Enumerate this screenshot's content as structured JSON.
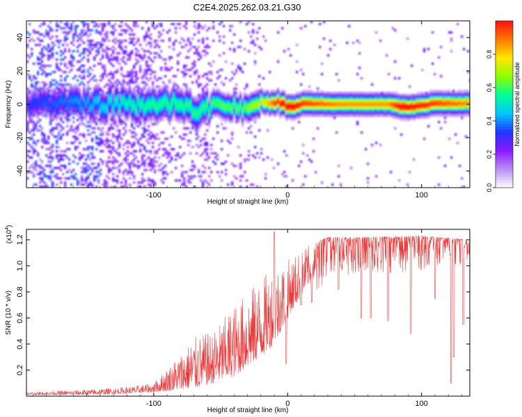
{
  "figure": {
    "title": "C2E4.2025.262.03.21.G30"
  },
  "chart_data": [
    {
      "type": "heatmap",
      "name": "spectrogram",
      "xlabel": "Height of straight line (km)",
      "ylabel": "Frequency (Hz)",
      "xlim": [
        -195,
        136
      ],
      "ylim": [
        -50,
        50
      ],
      "x_ticks": [
        -100,
        0,
        100
      ],
      "x_tick_labels": [
        "-100",
        "0",
        "100"
      ],
      "y_ticks": [
        -40,
        -20,
        0,
        20,
        40
      ],
      "y_tick_labels": [
        "-40",
        "-20",
        "0",
        "20",
        "40"
      ],
      "colorbar": {
        "label": "Normalized spectral amplitude",
        "range": [
          0,
          1
        ],
        "ticks": [
          0.0,
          0.2,
          0.4,
          0.6,
          0.8
        ],
        "tick_labels": [
          "0.0",
          "0.2",
          "0.4",
          "0.6",
          "0.8"
        ],
        "colors": [
          "#ffffff",
          "#b890f0",
          "#8a1aff",
          "#2233ff",
          "#00c8ff",
          "#00ff99",
          "#8bff00",
          "#ffe800",
          "#ff7a00",
          "#ff1010"
        ]
      },
      "ridge": [
        {
          "x": -195,
          "f": 0,
          "amp": 0.25
        },
        {
          "x": -150,
          "f": 0,
          "amp": 0.35
        },
        {
          "x": -125,
          "f": 0,
          "amp": 0.45
        },
        {
          "x": -100,
          "f": -1,
          "amp": 0.5
        },
        {
          "x": -80,
          "f": 1,
          "amp": 0.5
        },
        {
          "x": -65,
          "f": -4,
          "amp": 0.5
        },
        {
          "x": -50,
          "f": 0,
          "amp": 0.55
        },
        {
          "x": -35,
          "f": -3,
          "amp": 0.55
        },
        {
          "x": -20,
          "f": 1,
          "amp": 0.6
        },
        {
          "x": -5,
          "f": 1,
          "amp": 0.95
        },
        {
          "x": 0,
          "f": -1.5,
          "amp": 0.95
        },
        {
          "x": 5,
          "f": -1.5,
          "amp": 0.95
        },
        {
          "x": 12,
          "f": 0.5,
          "amp": 0.85
        },
        {
          "x": 40,
          "f": 0,
          "amp": 0.75
        },
        {
          "x": 75,
          "f": 0,
          "amp": 0.75
        },
        {
          "x": 85,
          "f": -1.5,
          "amp": 0.95
        },
        {
          "x": 95,
          "f": -1.5,
          "amp": 0.9
        },
        {
          "x": 110,
          "f": 0.5,
          "amp": 0.85
        },
        {
          "x": 136,
          "f": 0.5,
          "amp": 0.75
        }
      ]
    },
    {
      "type": "line",
      "name": "snr",
      "xlabel": "Height of straight line (km)",
      "ylabel": "SNR (10 * v/v)",
      "y_multiplier_label": "(x10",
      "y_multiplier_exp": "4",
      "y_multiplier_close": ")",
      "xlim": [
        -195,
        136
      ],
      "ylim": [
        0,
        1.28
      ],
      "x_ticks": [
        -100,
        0,
        100
      ],
      "x_tick_labels": [
        "-100",
        "0",
        "100"
      ],
      "y_ticks": [
        0.2,
        0.4,
        0.6,
        0.8,
        1.0,
        1.2
      ],
      "y_tick_labels": [
        "0.2",
        "0.4",
        "0.6",
        "0.8",
        "1.0",
        "1.2"
      ],
      "color": "#ee3333",
      "envelope": [
        {
          "x": -195,
          "low": 0.01,
          "high": 0.03
        },
        {
          "x": -150,
          "low": 0.01,
          "high": 0.05
        },
        {
          "x": -120,
          "low": 0.02,
          "high": 0.07
        },
        {
          "x": -100,
          "low": 0.03,
          "high": 0.1
        },
        {
          "x": -80,
          "low": 0.05,
          "high": 0.33
        },
        {
          "x": -70,
          "low": 0.06,
          "high": 0.45
        },
        {
          "x": -55,
          "low": 0.1,
          "high": 0.5
        },
        {
          "x": -40,
          "low": 0.15,
          "high": 0.7
        },
        {
          "x": -20,
          "low": 0.3,
          "high": 0.9
        },
        {
          "x": -10,
          "low": 0.4,
          "high": 1.0
        },
        {
          "x": 0,
          "low": 0.6,
          "high": 1.05
        },
        {
          "x": 15,
          "low": 0.85,
          "high": 1.15
        },
        {
          "x": 30,
          "low": 1.0,
          "high": 1.22
        },
        {
          "x": 60,
          "low": 1.05,
          "high": 1.22
        },
        {
          "x": 100,
          "low": 1.05,
          "high": 1.23
        },
        {
          "x": 136,
          "low": 1.08,
          "high": 1.2
        }
      ],
      "spikes": [
        {
          "x": -10,
          "y": 1.26
        },
        {
          "x": -1,
          "y": 0.25
        },
        {
          "x": 10,
          "y": 0.7
        },
        {
          "x": 18,
          "y": 0.72
        },
        {
          "x": 38,
          "y": 0.82
        },
        {
          "x": 55,
          "y": 0.6
        },
        {
          "x": 62,
          "y": 0.6
        },
        {
          "x": 75,
          "y": 0.58
        },
        {
          "x": 92,
          "y": 0.48
        },
        {
          "x": 110,
          "y": 0.75
        },
        {
          "x": 122,
          "y": 0.1
        },
        {
          "x": 124,
          "y": 0.3
        },
        {
          "x": 131,
          "y": 0.55
        }
      ]
    }
  ]
}
